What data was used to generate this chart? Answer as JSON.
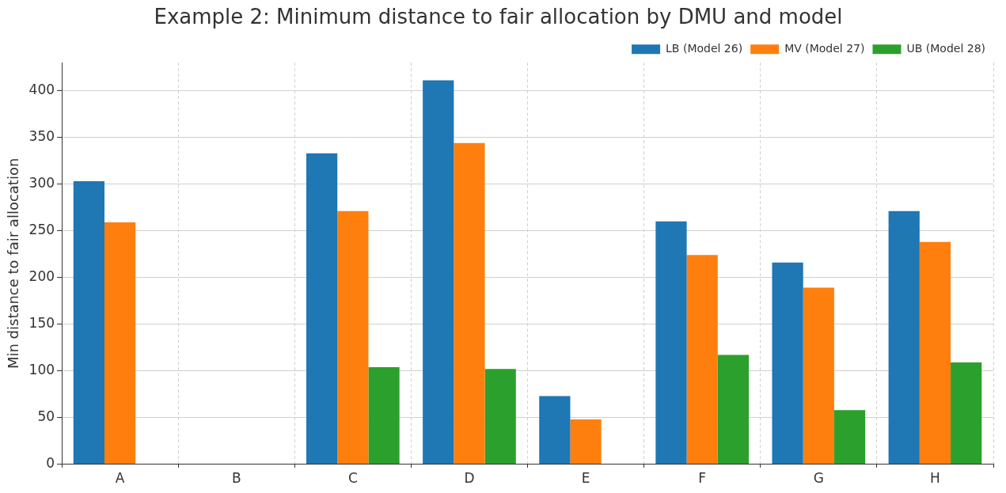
{
  "chart_data": {
    "type": "bar",
    "title": "Example 2: Minimum distance to fair allocation by DMU and model",
    "ylabel": "Min distance to fair allocation",
    "categories": [
      "A",
      "B",
      "C",
      "D",
      "E",
      "F",
      "G",
      "H"
    ],
    "series": [
      {
        "name": "LB (Model 26)",
        "color": "#1f77b4",
        "values": [
          303,
          0,
          333,
          411,
          73,
          260,
          216,
          271
        ]
      },
      {
        "name": "MV (Model 27)",
        "color": "#ff7f0e",
        "values": [
          259,
          0,
          271,
          344,
          48,
          224,
          189,
          238
        ]
      },
      {
        "name": "UB (Model 28)",
        "color": "#2ca02c",
        "values": [
          0,
          0,
          104,
          102,
          0,
          117,
          58,
          109
        ]
      }
    ],
    "ylim": [
      0,
      430
    ],
    "yticks": [
      0,
      50,
      100,
      150,
      200,
      250,
      300,
      350,
      400
    ],
    "grid": true,
    "legend": "top right"
  }
}
